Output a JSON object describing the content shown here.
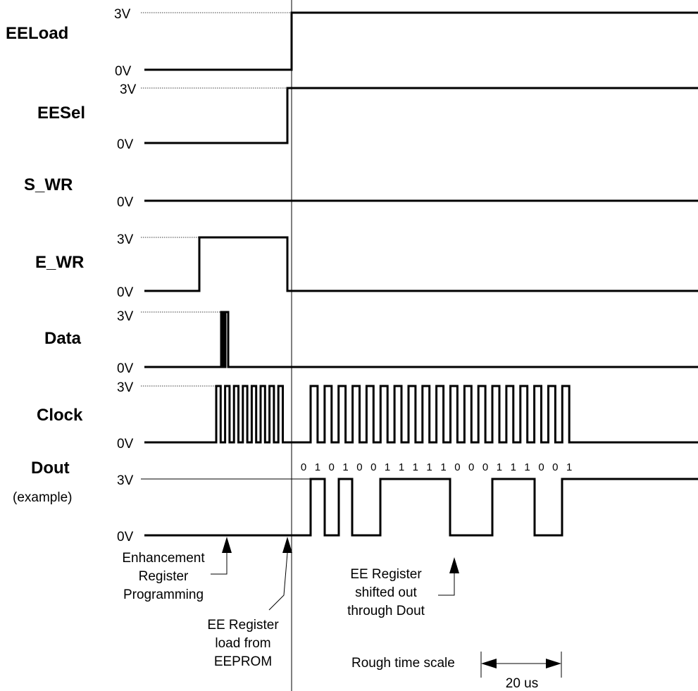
{
  "signals": [
    {
      "name": "EELoad",
      "sub": "",
      "high_label": "3V",
      "low_label": "0V"
    },
    {
      "name": "EESel",
      "sub": "",
      "high_label": "3V",
      "low_label": "0V"
    },
    {
      "name": "S_WR",
      "sub": "",
      "high_label": "",
      "low_label": "0V"
    },
    {
      "name": "E_WR",
      "sub": "",
      "high_label": "3V",
      "low_label": "0V"
    },
    {
      "name": "Data",
      "sub": "",
      "high_label": "3V",
      "low_label": "0V"
    },
    {
      "name": "Clock",
      "sub": "",
      "high_label": "3V",
      "low_label": "0V"
    },
    {
      "name": "Dout",
      "sub": "(example)",
      "high_label": "3V",
      "low_label": "0V"
    }
  ],
  "dout_bits": [
    "0",
    "1",
    "0",
    "1",
    "0",
    "0",
    "1",
    "1",
    "1",
    "1",
    "1",
    "0",
    "0",
    "0",
    "1",
    "1",
    "1",
    "0",
    "0",
    "1"
  ],
  "annotations": {
    "enhancement": [
      "Enhancement",
      "Register",
      "Programming"
    ],
    "ee_load": [
      "EE Register",
      "load from",
      "EEPROM"
    ],
    "ee_shift": [
      "EE Register",
      "shifted out",
      "through Dout"
    ],
    "time_scale_label": "Rough time scale",
    "time_scale_value": "20 us"
  }
}
